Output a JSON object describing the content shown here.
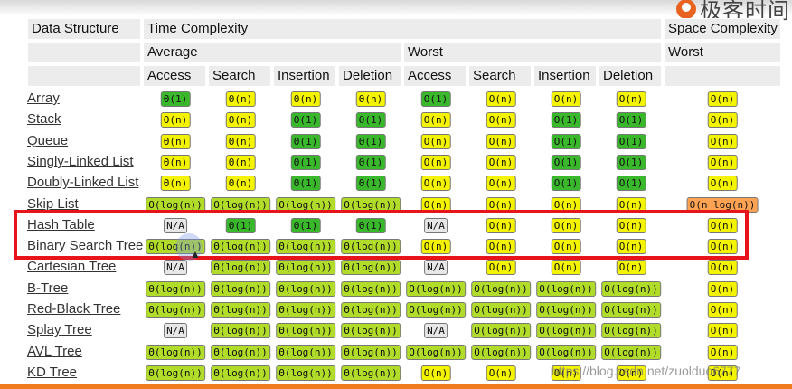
{
  "logo": {
    "text": "极客时间"
  },
  "header": {
    "data_structure": "Data Structure",
    "time_complexity": "Time Complexity",
    "space_complexity": "Space Complexity",
    "average": "Average",
    "worst": "Worst",
    "space_worst": "Worst",
    "ops": [
      "Access",
      "Search",
      "Insertion",
      "Deletion",
      "Access",
      "Search",
      "Insertion",
      "Deletion"
    ]
  },
  "colors": {
    "green": "#3ab82b",
    "lime": "#b2dc2a",
    "yellow": "#f4f400",
    "orange": "#ffa352",
    "gray": "#e7e7e7",
    "highlight": "#e8141b"
  },
  "rows": [
    {
      "name": "Array",
      "cells": [
        {
          "text": "Θ(1)",
          "color": "green"
        },
        {
          "text": "Θ(n)",
          "color": "yellow"
        },
        {
          "text": "Θ(n)",
          "color": "yellow"
        },
        {
          "text": "Θ(n)",
          "color": "yellow"
        },
        {
          "text": "O(1)",
          "color": "green"
        },
        {
          "text": "O(n)",
          "color": "yellow"
        },
        {
          "text": "O(n)",
          "color": "yellow"
        },
        {
          "text": "O(n)",
          "color": "yellow"
        },
        {
          "text": "O(n)",
          "color": "yellow"
        }
      ]
    },
    {
      "name": "Stack",
      "cells": [
        {
          "text": "Θ(n)",
          "color": "yellow"
        },
        {
          "text": "Θ(n)",
          "color": "yellow"
        },
        {
          "text": "Θ(1)",
          "color": "green"
        },
        {
          "text": "Θ(1)",
          "color": "green"
        },
        {
          "text": "O(n)",
          "color": "yellow"
        },
        {
          "text": "O(n)",
          "color": "yellow"
        },
        {
          "text": "O(1)",
          "color": "green"
        },
        {
          "text": "O(1)",
          "color": "green"
        },
        {
          "text": "O(n)",
          "color": "yellow"
        }
      ]
    },
    {
      "name": "Queue",
      "cells": [
        {
          "text": "Θ(n)",
          "color": "yellow"
        },
        {
          "text": "Θ(n)",
          "color": "yellow"
        },
        {
          "text": "Θ(1)",
          "color": "green"
        },
        {
          "text": "Θ(1)",
          "color": "green"
        },
        {
          "text": "O(n)",
          "color": "yellow"
        },
        {
          "text": "O(n)",
          "color": "yellow"
        },
        {
          "text": "O(1)",
          "color": "green"
        },
        {
          "text": "O(1)",
          "color": "green"
        },
        {
          "text": "O(n)",
          "color": "yellow"
        }
      ]
    },
    {
      "name": "Singly-Linked List",
      "cells": [
        {
          "text": "Θ(n)",
          "color": "yellow"
        },
        {
          "text": "Θ(n)",
          "color": "yellow"
        },
        {
          "text": "Θ(1)",
          "color": "green"
        },
        {
          "text": "Θ(1)",
          "color": "green"
        },
        {
          "text": "O(n)",
          "color": "yellow"
        },
        {
          "text": "O(n)",
          "color": "yellow"
        },
        {
          "text": "O(1)",
          "color": "green"
        },
        {
          "text": "O(1)",
          "color": "green"
        },
        {
          "text": "O(n)",
          "color": "yellow"
        }
      ]
    },
    {
      "name": "Doubly-Linked List",
      "cells": [
        {
          "text": "Θ(n)",
          "color": "yellow"
        },
        {
          "text": "Θ(n)",
          "color": "yellow"
        },
        {
          "text": "Θ(1)",
          "color": "green"
        },
        {
          "text": "Θ(1)",
          "color": "green"
        },
        {
          "text": "O(n)",
          "color": "yellow"
        },
        {
          "text": "O(n)",
          "color": "yellow"
        },
        {
          "text": "O(1)",
          "color": "green"
        },
        {
          "text": "O(1)",
          "color": "green"
        },
        {
          "text": "O(n)",
          "color": "yellow"
        }
      ]
    },
    {
      "name": "Skip List",
      "cells": [
        {
          "text": "Θ(log(n))",
          "color": "lime"
        },
        {
          "text": "Θ(log(n))",
          "color": "lime"
        },
        {
          "text": "Θ(log(n))",
          "color": "lime"
        },
        {
          "text": "Θ(log(n))",
          "color": "lime"
        },
        {
          "text": "O(n)",
          "color": "yellow"
        },
        {
          "text": "O(n)",
          "color": "yellow"
        },
        {
          "text": "O(n)",
          "color": "yellow"
        },
        {
          "text": "O(n)",
          "color": "yellow"
        },
        {
          "text": "O(n log(n))",
          "color": "orange"
        }
      ]
    },
    {
      "name": "Hash Table",
      "cells": [
        {
          "text": "N/A",
          "color": "gray"
        },
        {
          "text": "Θ(1)",
          "color": "green"
        },
        {
          "text": "Θ(1)",
          "color": "green"
        },
        {
          "text": "Θ(1)",
          "color": "green"
        },
        {
          "text": "N/A",
          "color": "gray"
        },
        {
          "text": "O(n)",
          "color": "yellow"
        },
        {
          "text": "O(n)",
          "color": "yellow"
        },
        {
          "text": "O(n)",
          "color": "yellow"
        },
        {
          "text": "O(n)",
          "color": "yellow"
        }
      ]
    },
    {
      "name": "Binary Search Tree",
      "cells": [
        {
          "text": "Θ(log(n))",
          "color": "lime"
        },
        {
          "text": "Θ(log(n))",
          "color": "lime"
        },
        {
          "text": "Θ(log(n))",
          "color": "lime"
        },
        {
          "text": "Θ(log(n))",
          "color": "lime"
        },
        {
          "text": "O(n)",
          "color": "yellow"
        },
        {
          "text": "O(n)",
          "color": "yellow"
        },
        {
          "text": "O(n)",
          "color": "yellow"
        },
        {
          "text": "O(n)",
          "color": "yellow"
        },
        {
          "text": "O(n)",
          "color": "yellow"
        }
      ]
    },
    {
      "name": "Cartesian Tree",
      "cells": [
        {
          "text": "N/A",
          "color": "gray"
        },
        {
          "text": "Θ(log(n))",
          "color": "lime"
        },
        {
          "text": "Θ(log(n))",
          "color": "lime"
        },
        {
          "text": "Θ(log(n))",
          "color": "lime"
        },
        {
          "text": "N/A",
          "color": "gray"
        },
        {
          "text": "O(n)",
          "color": "yellow"
        },
        {
          "text": "O(n)",
          "color": "yellow"
        },
        {
          "text": "O(n)",
          "color": "yellow"
        },
        {
          "text": "O(n)",
          "color": "yellow"
        }
      ]
    },
    {
      "name": "B-Tree",
      "cells": [
        {
          "text": "Θ(log(n))",
          "color": "lime"
        },
        {
          "text": "Θ(log(n))",
          "color": "lime"
        },
        {
          "text": "Θ(log(n))",
          "color": "lime"
        },
        {
          "text": "Θ(log(n))",
          "color": "lime"
        },
        {
          "text": "O(log(n))",
          "color": "lime"
        },
        {
          "text": "O(log(n))",
          "color": "lime"
        },
        {
          "text": "O(log(n))",
          "color": "lime"
        },
        {
          "text": "O(log(n))",
          "color": "lime"
        },
        {
          "text": "O(n)",
          "color": "yellow"
        }
      ]
    },
    {
      "name": "Red-Black Tree",
      "cells": [
        {
          "text": "Θ(log(n))",
          "color": "lime"
        },
        {
          "text": "Θ(log(n))",
          "color": "lime"
        },
        {
          "text": "Θ(log(n))",
          "color": "lime"
        },
        {
          "text": "Θ(log(n))",
          "color": "lime"
        },
        {
          "text": "O(log(n))",
          "color": "lime"
        },
        {
          "text": "O(log(n))",
          "color": "lime"
        },
        {
          "text": "O(log(n))",
          "color": "lime"
        },
        {
          "text": "O(log(n))",
          "color": "lime"
        },
        {
          "text": "O(n)",
          "color": "yellow"
        }
      ]
    },
    {
      "name": "Splay Tree",
      "cells": [
        {
          "text": "N/A",
          "color": "gray"
        },
        {
          "text": "Θ(log(n))",
          "color": "lime"
        },
        {
          "text": "Θ(log(n))",
          "color": "lime"
        },
        {
          "text": "Θ(log(n))",
          "color": "lime"
        },
        {
          "text": "N/A",
          "color": "gray"
        },
        {
          "text": "O(log(n))",
          "color": "lime"
        },
        {
          "text": "O(log(n))",
          "color": "lime"
        },
        {
          "text": "O(log(n))",
          "color": "lime"
        },
        {
          "text": "O(n)",
          "color": "yellow"
        }
      ]
    },
    {
      "name": "AVL Tree",
      "cells": [
        {
          "text": "Θ(log(n))",
          "color": "lime"
        },
        {
          "text": "Θ(log(n))",
          "color": "lime"
        },
        {
          "text": "Θ(log(n))",
          "color": "lime"
        },
        {
          "text": "Θ(log(n))",
          "color": "lime"
        },
        {
          "text": "O(log(n))",
          "color": "lime"
        },
        {
          "text": "O(log(n))",
          "color": "lime"
        },
        {
          "text": "O(log(n))",
          "color": "lime"
        },
        {
          "text": "O(log(n))",
          "color": "lime"
        },
        {
          "text": "O(n)",
          "color": "yellow"
        }
      ]
    },
    {
      "name": "KD Tree",
      "cells": [
        {
          "text": "Θ(log(n))",
          "color": "lime"
        },
        {
          "text": "Θ(log(n))",
          "color": "lime"
        },
        {
          "text": "Θ(log(n))",
          "color": "lime"
        },
        {
          "text": "Θ(log(n))",
          "color": "lime"
        },
        {
          "text": "O(n)",
          "color": "yellow"
        },
        {
          "text": "O(n)",
          "color": "yellow"
        },
        {
          "text": "O(n)",
          "color": "yellow"
        },
        {
          "text": "O(n)",
          "color": "yellow"
        },
        {
          "text": "O(n)",
          "color": "yellow"
        }
      ]
    }
  ],
  "watermark": "https://blog.csdn.net/zuolduo6777"
}
